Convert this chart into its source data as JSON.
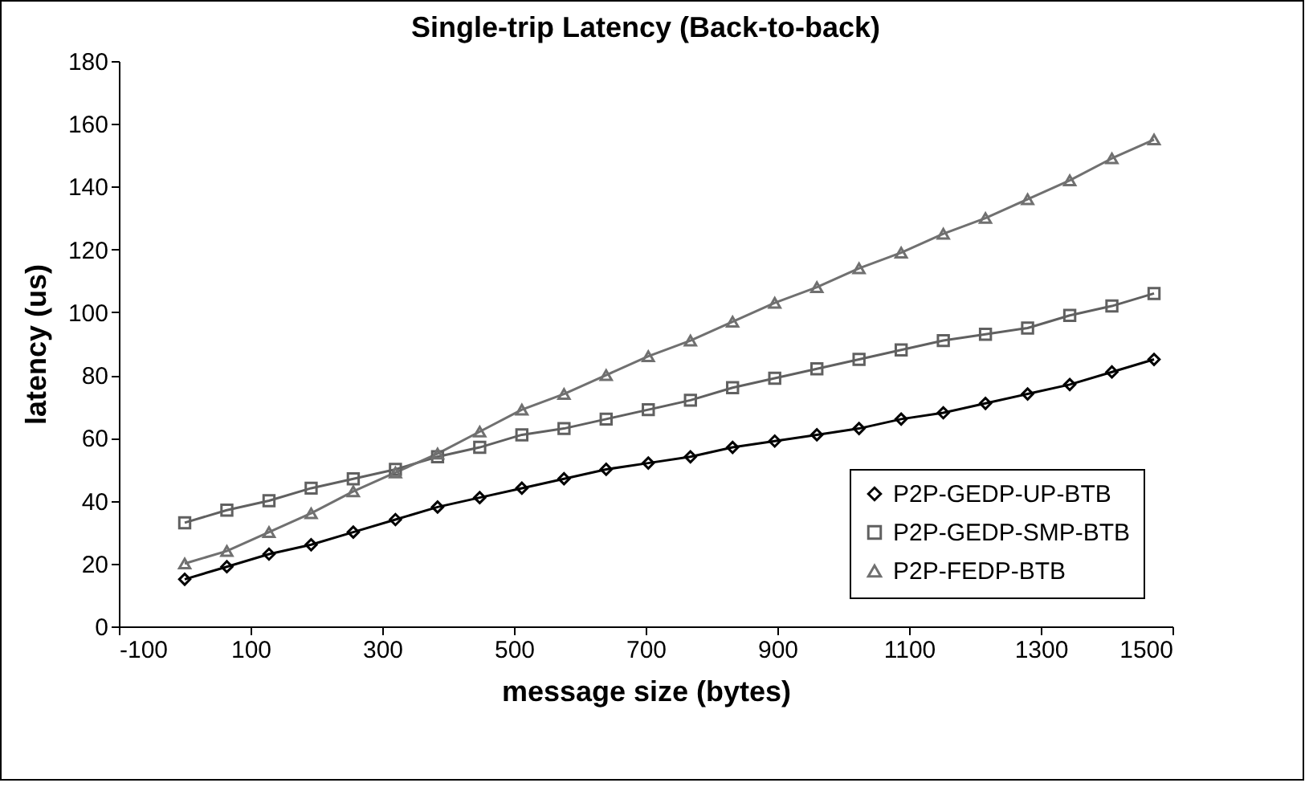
{
  "chart_data": {
    "type": "line",
    "title": "Single-trip Latency (Back-to-back)",
    "xlabel": "message size (bytes)",
    "ylabel": "latency (us)",
    "x": [
      0,
      64,
      128,
      192,
      256,
      320,
      384,
      448,
      512,
      576,
      640,
      704,
      768,
      832,
      896,
      960,
      1024,
      1088,
      1152,
      1216,
      1280,
      1344,
      1408,
      1472
    ],
    "series": [
      {
        "name": "P2P-GEDP-UP-BTB",
        "color": "#000000",
        "marker": "diamond",
        "values": [
          15,
          19,
          23,
          26,
          30,
          34,
          38,
          41,
          44,
          47,
          50,
          52,
          54,
          57,
          59,
          61,
          63,
          66,
          68,
          71,
          74,
          77,
          81,
          85
        ]
      },
      {
        "name": "P2P-GEDP-SMP-BTB",
        "color": "#606060",
        "marker": "square",
        "values": [
          33,
          37,
          40,
          44,
          47,
          50,
          54,
          57,
          61,
          63,
          66,
          69,
          72,
          76,
          79,
          82,
          85,
          88,
          91,
          93,
          95,
          99,
          102,
          106
        ]
      },
      {
        "name": "P2P-FEDP-BTB",
        "color": "#707070",
        "marker": "triangle",
        "values": [
          20,
          24,
          30,
          36,
          43,
          49,
          55,
          62,
          69,
          74,
          80,
          86,
          91,
          97,
          103,
          108,
          114,
          119,
          125,
          130,
          136,
          142,
          149,
          155
        ]
      }
    ],
    "xlim": [
      -100,
      1500
    ],
    "xticks": [
      -100,
      100,
      300,
      500,
      700,
      900,
      1100,
      1300,
      1500
    ],
    "ylim": [
      0,
      180
    ],
    "yticks": [
      0,
      20,
      40,
      60,
      80,
      100,
      120,
      140,
      160,
      180
    ],
    "legend": "bottom right",
    "grid": false,
    "line_style": "solid"
  }
}
